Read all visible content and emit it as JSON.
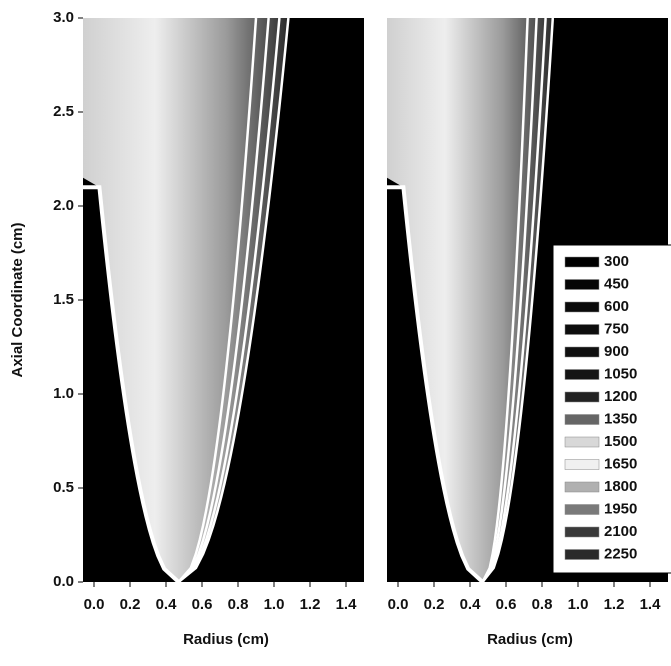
{
  "chart_data": [
    {
      "type": "contour",
      "xlabel": "Radius (cm)",
      "ylabel": "Axial Coordinate (cm)",
      "xlim": [
        0,
        1.5
      ],
      "ylim": [
        0,
        3
      ],
      "xticks": [
        {
          "value": 0,
          "label": "0.0"
        },
        0.2,
        0.4,
        0.6,
        0.8,
        {
          "value": 1,
          "label": "1.0"
        },
        1.2,
        1.4
      ],
      "yticks": [
        {
          "value": 0,
          "label": "0.0"
        },
        0.5,
        {
          "value": 1,
          "label": "1.0"
        },
        1.5,
        {
          "value": 2,
          "label": "2.0"
        },
        2.5,
        {
          "value": 3,
          "label": "3.0"
        }
      ]
    },
    {
      "type": "contour",
      "xlabel": "Radius (cm)",
      "xlim": [
        0,
        1.5
      ],
      "ylim": [
        0,
        3
      ],
      "xticks": [
        {
          "value": 0,
          "label": "0.0"
        },
        0.2,
        0.4,
        0.6,
        0.8,
        {
          "value": 1,
          "label": "1.0"
        },
        1.2,
        1.4
      ],
      "legend_levels": [
        300,
        450,
        600,
        750,
        900,
        1050,
        1200,
        1350,
        1500,
        1650,
        1800,
        1950,
        2100,
        2250
      ],
      "legend_colors": [
        "#000000",
        "#050505",
        "#0a0a0a",
        "#0d0d0d",
        "#101010",
        "#141414",
        "#222222",
        "#666666",
        "#d8d8d8",
        "#f0f0f0",
        "#b0b0b0",
        "#7a7a7a",
        "#3a3a3a",
        "#2a2a2a"
      ]
    }
  ]
}
